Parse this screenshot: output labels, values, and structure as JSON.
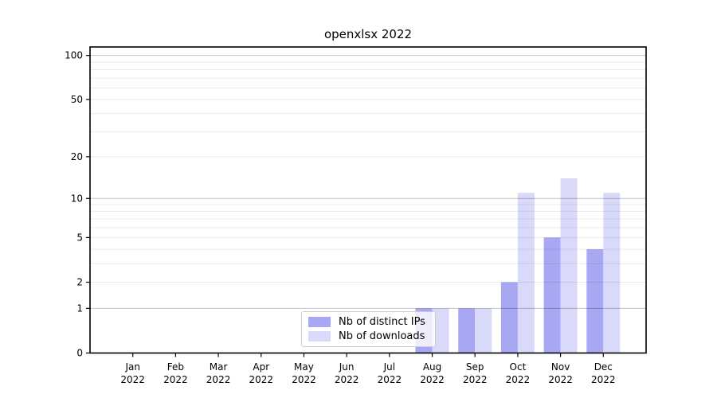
{
  "chart_data": {
    "type": "bar",
    "title": "openxlsx 2022",
    "year_label": "2022",
    "categories": [
      "Jan",
      "Feb",
      "Mar",
      "Apr",
      "May",
      "Jun",
      "Jul",
      "Aug",
      "Sep",
      "Oct",
      "Nov",
      "Dec"
    ],
    "series": [
      {
        "name": "Nb of distinct IPs",
        "color": "#a7a7f4",
        "values": [
          0,
          0,
          0,
          0,
          0,
          0,
          0,
          1,
          1,
          2,
          5,
          4
        ]
      },
      {
        "name": "Nb of downloads",
        "color": "#d9d9fa",
        "values": [
          0,
          0,
          0,
          0,
          0,
          0,
          0,
          1,
          1,
          11,
          14,
          11
        ]
      }
    ],
    "yticks": [
      0,
      1,
      2,
      5,
      10,
      20,
      50,
      100
    ],
    "scale": "log1p",
    "ylim": [
      0,
      115
    ],
    "grid": "both",
    "legend_position": "inside lower-center-left",
    "colors": {
      "grid_major": "rgba(0,0,0,0.24)",
      "grid_minor": "rgba(0,0,0,0.08)",
      "axis": "#000000",
      "text": "#000000",
      "background": "#ffffff"
    }
  }
}
